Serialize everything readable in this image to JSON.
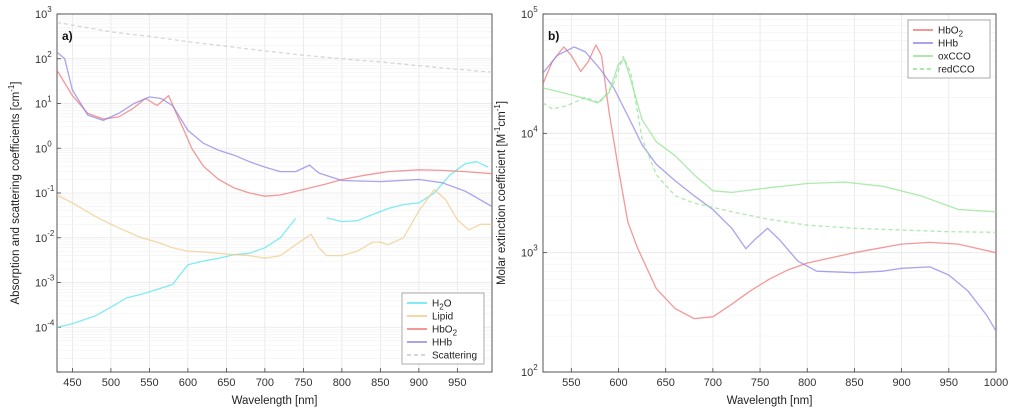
{
  "chart_data": [
    {
      "panel_label": "a)",
      "type": "line",
      "title": "",
      "xlabel": "Wavelength [nm]",
      "ylabel": "Absorption and scattering coefficients [cm",
      "ylabel_sup": "-1",
      "ylabel_tail": "]",
      "y_scale": "log",
      "xlim": [
        430,
        995
      ],
      "ylim_exp": [
        -5,
        3
      ],
      "xticks": [
        450,
        500,
        550,
        600,
        650,
        700,
        750,
        800,
        850,
        900,
        950
      ],
      "yticks_exp": [
        -4,
        -3,
        -2,
        -1,
        0,
        1,
        2,
        3
      ],
      "grid": true,
      "legend_position": "bottom-right",
      "series": [
        {
          "name": "H₂O",
          "name_base": "H",
          "name_sub": "2",
          "name_tail": "O",
          "color": "#55e6ee",
          "dash": "",
          "points": [
            [
              430,
              0.0001
            ],
            [
              450,
              0.00012
            ],
            [
              480,
              0.00018
            ],
            [
              500,
              0.00028
            ],
            [
              520,
              0.00045
            ],
            [
              540,
              0.00055
            ],
            [
              560,
              0.0007
            ],
            [
              580,
              0.0009
            ],
            [
              600,
              0.0025
            ],
            [
              620,
              0.003
            ],
            [
              640,
              0.0035
            ],
            [
              660,
              0.0042
            ],
            [
              680,
              0.0045
            ],
            [
              700,
              0.006
            ],
            [
              720,
              0.01
            ],
            [
              740,
              0.027
            ]
          ]
        },
        {
          "name": "",
          "color": "#55e6ee",
          "dash": "",
          "points": [
            [
              780,
              0.028
            ],
            [
              800,
              0.023
            ],
            [
              820,
              0.024
            ],
            [
              840,
              0.033
            ],
            [
              860,
              0.045
            ],
            [
              880,
              0.055
            ],
            [
              900,
              0.06
            ],
            [
              920,
              0.1
            ],
            [
              940,
              0.25
            ],
            [
              960,
              0.45
            ],
            [
              975,
              0.5
            ],
            [
              990,
              0.38
            ]
          ]
        },
        {
          "name": "Lipid",
          "color": "#f3c98b",
          "dash": "",
          "points": [
            [
              430,
              0.09
            ],
            [
              450,
              0.06
            ],
            [
              480,
              0.03
            ],
            [
              500,
              0.02
            ],
            [
              520,
              0.014
            ],
            [
              540,
              0.01
            ],
            [
              560,
              0.008
            ],
            [
              580,
              0.006
            ],
            [
              600,
              0.005
            ],
            [
              620,
              0.0048
            ],
            [
              640,
              0.0045
            ],
            [
              660,
              0.0042
            ],
            [
              680,
              0.004
            ],
            [
              700,
              0.0035
            ],
            [
              720,
              0.004
            ],
            [
              740,
              0.007
            ],
            [
              760,
              0.012
            ],
            [
              770,
              0.006
            ],
            [
              780,
              0.004
            ],
            [
              800,
              0.004
            ],
            [
              820,
              0.005
            ],
            [
              840,
              0.008
            ],
            [
              850,
              0.008
            ],
            [
              860,
              0.007
            ],
            [
              880,
              0.01
            ],
            [
              900,
              0.04
            ],
            [
              920,
              0.12
            ],
            [
              935,
              0.07
            ],
            [
              950,
              0.025
            ],
            [
              965,
              0.015
            ],
            [
              980,
              0.02
            ],
            [
              995,
              0.02
            ]
          ]
        },
        {
          "name": "HbO₂",
          "name_base": "HbO",
          "name_sub": "2",
          "name_tail": "",
          "color": "#f07575",
          "dash": "",
          "points": [
            [
              430,
              55
            ],
            [
              450,
              15
            ],
            [
              470,
              6
            ],
            [
              490,
              4.5
            ],
            [
              510,
              5
            ],
            [
              530,
              8
            ],
            [
              545,
              13
            ],
            [
              560,
              9
            ],
            [
              575,
              15
            ],
            [
              585,
              6
            ],
            [
              595,
              2.5
            ],
            [
              605,
              1
            ],
            [
              620,
              0.4
            ],
            [
              640,
              0.2
            ],
            [
              660,
              0.13
            ],
            [
              680,
              0.1
            ],
            [
              700,
              0.085
            ],
            [
              720,
              0.09
            ],
            [
              750,
              0.12
            ],
            [
              780,
              0.16
            ],
            [
              800,
              0.2
            ],
            [
              830,
              0.25
            ],
            [
              860,
              0.3
            ],
            [
              900,
              0.33
            ],
            [
              930,
              0.32
            ],
            [
              960,
              0.3
            ],
            [
              995,
              0.27
            ]
          ]
        },
        {
          "name": "HHb",
          "color": "#8c85ea",
          "dash": "",
          "points": [
            [
              430,
              140
            ],
            [
              440,
              100
            ],
            [
              450,
              20
            ],
            [
              470,
              5.5
            ],
            [
              490,
              4.2
            ],
            [
              510,
              6
            ],
            [
              530,
              10
            ],
            [
              550,
              14
            ],
            [
              565,
              13
            ],
            [
              580,
              9
            ],
            [
              600,
              2.5
            ],
            [
              620,
              1.3
            ],
            [
              640,
              0.9
            ],
            [
              660,
              0.7
            ],
            [
              680,
              0.5
            ],
            [
              700,
              0.38
            ],
            [
              720,
              0.3
            ],
            [
              740,
              0.3
            ],
            [
              758,
              0.42
            ],
            [
              770,
              0.28
            ],
            [
              800,
              0.19
            ],
            [
              850,
              0.18
            ],
            [
              900,
              0.2
            ],
            [
              930,
              0.17
            ],
            [
              960,
              0.11
            ],
            [
              995,
              0.05
            ]
          ]
        },
        {
          "name": "Scattering",
          "color": "#c9c9c9",
          "dash": "4 3",
          "points": [
            [
              430,
              650
            ],
            [
              500,
              400
            ],
            [
              560,
              300
            ],
            [
              600,
              240
            ],
            [
              650,
              190
            ],
            [
              700,
              150
            ],
            [
              750,
              120
            ],
            [
              800,
              100
            ],
            [
              850,
              85
            ],
            [
              900,
              70
            ],
            [
              950,
              58
            ],
            [
              995,
              50
            ]
          ]
        }
      ]
    },
    {
      "panel_label": "b)",
      "type": "line",
      "title": "",
      "xlabel": "Wavelength [nm]",
      "ylabel": "Molar extinction coefficient [M",
      "ylabel_sup1": "-1",
      "ylabel_mid": "cm",
      "ylabel_sup2": "-1",
      "ylabel_tail": "]",
      "y_scale": "log",
      "xlim": [
        520,
        1000
      ],
      "ylim_exp": [
        2,
        5
      ],
      "xticks": [
        550,
        600,
        650,
        700,
        750,
        800,
        850,
        900,
        950,
        1000
      ],
      "yticks_exp": [
        2,
        3,
        4,
        5
      ],
      "grid": true,
      "legend_position": "top-right",
      "series": [
        {
          "name": "HbO₂",
          "name_base": "HbO",
          "name_sub": "2",
          "name_tail": "",
          "color": "#f07575",
          "dash": "",
          "points": [
            [
              520,
              26000
            ],
            [
              530,
              40000
            ],
            [
              542,
              53000
            ],
            [
              550,
              45000
            ],
            [
              560,
              33000
            ],
            [
              568,
              40000
            ],
            [
              576,
              55000
            ],
            [
              582,
              45000
            ],
            [
              590,
              15000
            ],
            [
              600,
              5000
            ],
            [
              610,
              1800
            ],
            [
              620,
              1100
            ],
            [
              640,
              500
            ],
            [
              660,
              340
            ],
            [
              680,
              280
            ],
            [
              700,
              290
            ],
            [
              720,
              370
            ],
            [
              740,
              480
            ],
            [
              760,
              600
            ],
            [
              780,
              720
            ],
            [
              800,
              820
            ],
            [
              850,
              1000
            ],
            [
              900,
              1180
            ],
            [
              930,
              1220
            ],
            [
              960,
              1180
            ],
            [
              1000,
              1000
            ]
          ]
        },
        {
          "name": "HHb",
          "color": "#8c85ea",
          "dash": "",
          "points": [
            [
              520,
              32000
            ],
            [
              535,
              45000
            ],
            [
              553,
              53000
            ],
            [
              565,
              48000
            ],
            [
              580,
              35000
            ],
            [
              595,
              24000
            ],
            [
              610,
              14000
            ],
            [
              625,
              8000
            ],
            [
              640,
              5500
            ],
            [
              660,
              4000
            ],
            [
              680,
              3000
            ],
            [
              700,
              2300
            ],
            [
              720,
              1600
            ],
            [
              735,
              1080
            ],
            [
              745,
              1300
            ],
            [
              758,
              1600
            ],
            [
              770,
              1300
            ],
            [
              790,
              850
            ],
            [
              810,
              700
            ],
            [
              850,
              680
            ],
            [
              880,
              700
            ],
            [
              900,
              740
            ],
            [
              930,
              760
            ],
            [
              950,
              650
            ],
            [
              970,
              480
            ],
            [
              990,
              300
            ],
            [
              1000,
              220
            ]
          ]
        },
        {
          "name": "oxCCO",
          "color": "#8fe48f",
          "dash": "",
          "points": [
            [
              520,
              24000
            ],
            [
              540,
              22000
            ],
            [
              560,
              20000
            ],
            [
              578,
              18000
            ],
            [
              590,
              22000
            ],
            [
              600,
              38000
            ],
            [
              606,
              42000
            ],
            [
              612,
              30000
            ],
            [
              625,
              13000
            ],
            [
              640,
              8500
            ],
            [
              660,
              6500
            ],
            [
              680,
              4500
            ],
            [
              700,
              3300
            ],
            [
              720,
              3200
            ],
            [
              760,
              3500
            ],
            [
              800,
              3800
            ],
            [
              840,
              3900
            ],
            [
              880,
              3600
            ],
            [
              920,
              3000
            ],
            [
              960,
              2300
            ],
            [
              1000,
              2200
            ]
          ]
        },
        {
          "name": "redCCO",
          "color": "#8fe48f",
          "dash": "4 3",
          "points": [
            [
              520,
              18000
            ],
            [
              530,
              16000
            ],
            [
              545,
              17000
            ],
            [
              565,
              20000
            ],
            [
              580,
              18000
            ],
            [
              595,
              26000
            ],
            [
              605,
              44000
            ],
            [
              613,
              32000
            ],
            [
              625,
              9000
            ],
            [
              640,
              4500
            ],
            [
              660,
              3000
            ],
            [
              680,
              2600
            ],
            [
              700,
              2400
            ],
            [
              720,
              2200
            ],
            [
              760,
              1900
            ],
            [
              800,
              1700
            ],
            [
              850,
              1600
            ],
            [
              900,
              1550
            ],
            [
              950,
              1500
            ],
            [
              1000,
              1480
            ]
          ]
        }
      ]
    }
  ]
}
